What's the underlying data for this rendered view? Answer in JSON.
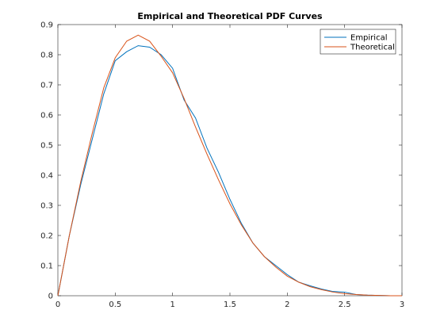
{
  "chart_data": {
    "type": "line",
    "title": "Empirical and Theoretical PDF Curves",
    "xlabel": "",
    "ylabel": "",
    "xlim": [
      0,
      3
    ],
    "ylim": [
      0,
      0.9
    ],
    "x_ticks": [
      "0",
      "0.5",
      "1",
      "1.5",
      "2",
      "2.5",
      "3"
    ],
    "y_ticks": [
      "0",
      "0.1",
      "0.2",
      "0.3",
      "0.4",
      "0.5",
      "0.6",
      "0.7",
      "0.8",
      "0.9"
    ],
    "grid": false,
    "legend_position": "top-right",
    "series": [
      {
        "name": "Empirical",
        "color": "#0072BD",
        "x": [
          0,
          0.1,
          0.2,
          0.3,
          0.4,
          0.5,
          0.6,
          0.7,
          0.8,
          0.9,
          1.0,
          1.1,
          1.2,
          1.3,
          1.4,
          1.5,
          1.6,
          1.7,
          1.8,
          1.9,
          2.0,
          2.1,
          2.2,
          2.3,
          2.4,
          2.5,
          2.6,
          2.7,
          2.8,
          2.9,
          3.0
        ],
        "y": [
          0.0,
          0.2,
          0.37,
          0.52,
          0.67,
          0.78,
          0.81,
          0.83,
          0.825,
          0.8,
          0.755,
          0.65,
          0.59,
          0.49,
          0.41,
          0.32,
          0.24,
          0.175,
          0.13,
          0.1,
          0.07,
          0.045,
          0.033,
          0.022,
          0.014,
          0.012,
          0.004,
          0.002,
          0.001,
          0.0,
          0.0
        ]
      },
      {
        "name": "Theoretical",
        "color": "#D95319",
        "x": [
          0,
          0.1,
          0.2,
          0.3,
          0.4,
          0.5,
          0.6,
          0.7,
          0.8,
          0.9,
          1.0,
          1.1,
          1.2,
          1.3,
          1.4,
          1.5,
          1.6,
          1.7,
          1.8,
          1.9,
          2.0,
          2.1,
          2.2,
          2.3,
          2.4,
          2.5,
          2.6,
          2.7,
          2.8,
          2.9,
          3.0
        ],
        "y": [
          0.0,
          0.2,
          0.38,
          0.54,
          0.69,
          0.79,
          0.845,
          0.865,
          0.845,
          0.795,
          0.74,
          0.655,
          0.56,
          0.47,
          0.385,
          0.305,
          0.235,
          0.175,
          0.13,
          0.095,
          0.065,
          0.045,
          0.03,
          0.02,
          0.012,
          0.007,
          0.004,
          0.002,
          0.001,
          0.0,
          0.0
        ]
      }
    ]
  }
}
